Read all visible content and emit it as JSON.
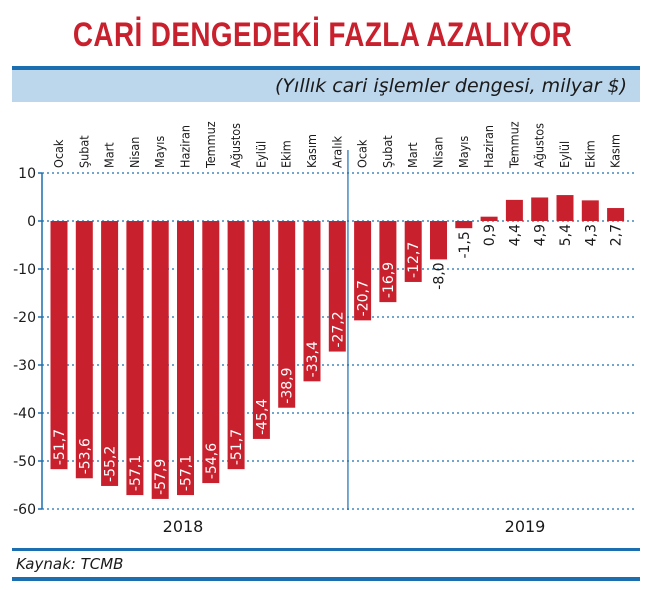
{
  "header": {
    "title": "CARİ DENGEDEKİ FAZLA AZALIYOR",
    "subtitle": "(Yıllık cari işlemler dengesi, milyar $)"
  },
  "footer": {
    "source": "Kaynak: TCMB"
  },
  "colors": {
    "bar": "#c8202d",
    "accent": "#1b6fb0",
    "subtitle_band": "#bcd6ec"
  },
  "chart_data": {
    "type": "bar",
    "categories": [
      "Ocak",
      "Şubat",
      "Mart",
      "Nisan",
      "Mayıs",
      "Haziran",
      "Temmuz",
      "Ağustos",
      "Eylül",
      "Ekim",
      "Kasım",
      "Aralık",
      "Ocak",
      "Şubat",
      "Mart",
      "Nisan",
      "Mayıs",
      "Haziran",
      "Temmuz",
      "Ağustos",
      "Eylül",
      "Ekim",
      "Kasım"
    ],
    "values": [
      -51.7,
      -53.6,
      -55.2,
      -57.1,
      -57.9,
      -57.1,
      -54.6,
      -51.7,
      -45.4,
      -38.9,
      -33.4,
      -27.2,
      -20.7,
      -16.9,
      -12.7,
      -8.0,
      -1.5,
      0.9,
      4.4,
      4.9,
      5.4,
      4.3,
      2.7
    ],
    "value_labels": [
      "-51,7",
      "-53,6",
      "-55,2",
      "-57,1",
      "-57,9",
      "-57,1",
      "-54,6",
      "-51,7",
      "-45,4",
      "-38,9",
      "-33,4",
      "-27,2",
      "-20,7",
      "-16,9",
      "-12,7",
      "-8,0",
      "-1,5",
      "0,9",
      "4,4",
      "4,9",
      "5,4",
      "4,3",
      "2,7"
    ],
    "groups": [
      {
        "label": "2018",
        "count": 12
      },
      {
        "label": "2019",
        "count": 11
      }
    ],
    "yticks": [
      10,
      0,
      -10,
      -20,
      -30,
      -40,
      -50,
      -60
    ],
    "ylim": [
      -60,
      10
    ],
    "grid": "dotted-horizontal",
    "title": "CARİ DENGEDEKİ FAZLA AZALIYOR",
    "ylabel": "",
    "xlabel": ""
  }
}
